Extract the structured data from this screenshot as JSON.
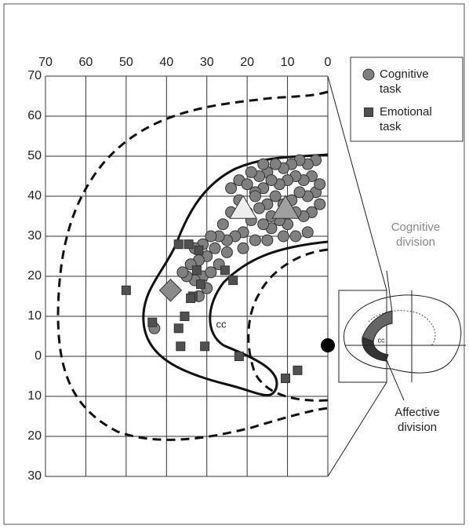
{
  "chart_data": {
    "type": "scatter",
    "xlim": [
      70,
      0
    ],
    "ylim": [
      -30,
      70
    ],
    "xticks": [
      70,
      60,
      50,
      40,
      30,
      20,
      10,
      0
    ],
    "yticks": [
      70,
      60,
      50,
      40,
      30,
      20,
      10,
      0,
      {
        "value": -10,
        "label": "10"
      },
      {
        "value": -20,
        "label": "20"
      },
      {
        "value": -30,
        "label": "30"
      }
    ],
    "grid": true,
    "legend": "upper right",
    "series": [
      {
        "name": "Cognitive task",
        "color": "#808080",
        "marker": "circle",
        "x": [
          3,
          5,
          7,
          9,
          11,
          13,
          15,
          17,
          4,
          6,
          8,
          10,
          12,
          14,
          16,
          18,
          3,
          5,
          7,
          9,
          11,
          13,
          15,
          17,
          4,
          6,
          8,
          10,
          12,
          14,
          16,
          19,
          5,
          8,
          21,
          23,
          25,
          27,
          29,
          31,
          20,
          22,
          24,
          22,
          19,
          18,
          26,
          28,
          30,
          32,
          34,
          31,
          33,
          29,
          35,
          30,
          32,
          25,
          27,
          21,
          18,
          15,
          2,
          2,
          43,
          14,
          11,
          24,
          20,
          16,
          33,
          36
        ],
        "values": [
          49,
          48,
          49,
          48,
          47,
          48,
          46,
          45,
          45,
          44,
          45,
          44,
          43,
          44,
          42,
          41,
          41,
          40,
          41,
          39,
          38,
          40,
          38,
          37,
          36,
          35,
          36,
          33,
          34,
          32,
          33,
          34,
          31,
          30,
          31,
          30,
          29,
          30,
          30,
          28,
          36,
          39,
          42,
          44,
          46,
          40,
          33,
          27,
          25,
          24,
          23,
          20,
          19,
          21,
          20,
          17,
          15,
          26,
          23,
          27,
          29,
          29,
          43,
          38,
          7,
          35,
          30,
          36,
          43,
          48,
          27,
          21
        ]
      },
      {
        "name": "Emotional task",
        "color": "#505050",
        "marker": "square",
        "x": [
          50,
          37,
          34.5,
          32,
          32.5,
          31.5,
          33.5,
          34,
          35.5,
          37,
          43.5,
          36.5,
          30.5,
          23.5,
          25.5,
          22,
          7.5,
          10.5
        ],
        "values": [
          16.5,
          28,
          28,
          26.5,
          21.5,
          18,
          15,
          14.5,
          10,
          7,
          8.5,
          2.5,
          2.5,
          19,
          21.5,
          0,
          -3.5,
          -5.5
        ]
      },
      {
        "color": "#8a8a8a",
        "marker": "diamond",
        "x": [
          39
        ],
        "values": [
          16.5
        ]
      },
      {
        "color": "#eeeeee",
        "marker": "triangle",
        "x": [
          21
        ],
        "values": [
          37
        ]
      },
      {
        "color": "#a0a0a0",
        "marker": "triangle",
        "x": [
          10.5
        ],
        "values": [
          37
        ]
      }
    ],
    "annotations": [
      "cc",
      "Cognitive division",
      "Affective division",
      "cc"
    ]
  }
}
